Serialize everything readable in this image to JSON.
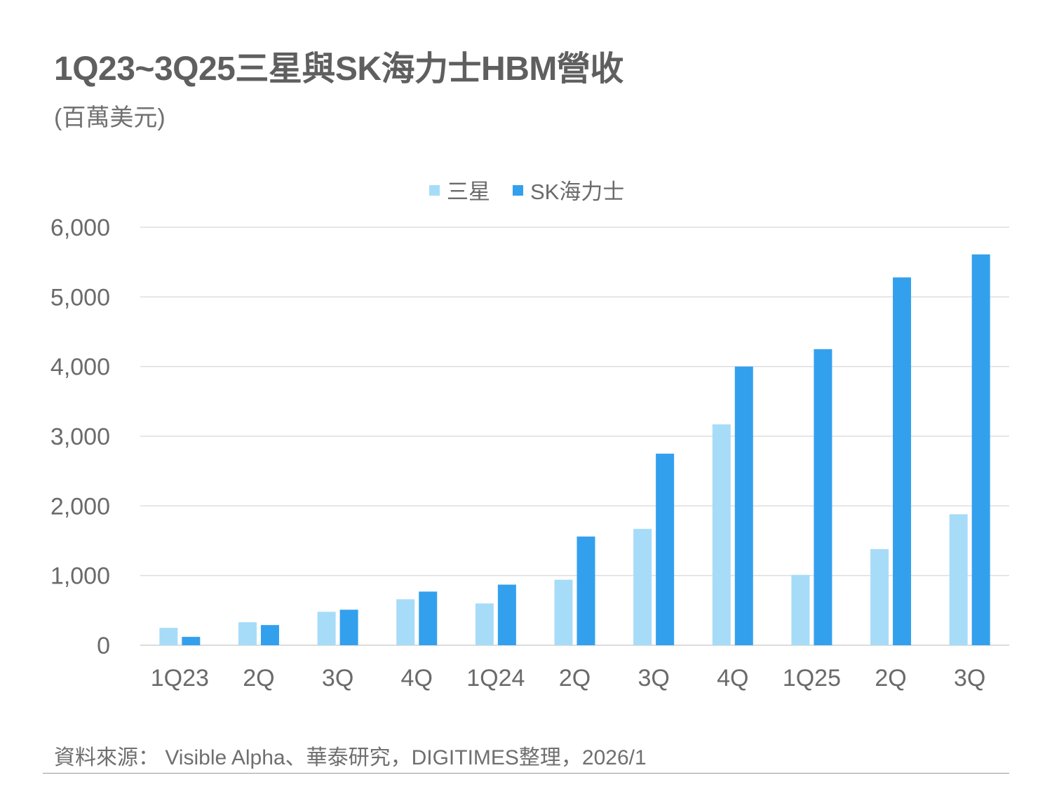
{
  "title": "1Q23~3Q25三星與SK海力士HBM營收",
  "subtitle": "(百萬美元)",
  "footer": "資料來源： Visible Alpha、華泰研究，DIGITIMES整理，2026/1",
  "chart_data": {
    "type": "bar",
    "title": "1Q23~3Q25三星與SK海力士HBM營收",
    "ylabel": "(百萬美元)",
    "categories": [
      "1Q23",
      "2Q",
      "3Q",
      "4Q",
      "1Q24",
      "2Q",
      "3Q",
      "4Q",
      "1Q25",
      "2Q",
      "3Q"
    ],
    "series": [
      {
        "name": "三星",
        "color": "#a7dcf8",
        "values": [
          250,
          330,
          480,
          660,
          600,
          940,
          1670,
          3170,
          1010,
          1380,
          1880
        ]
      },
      {
        "name": "SK海力士",
        "color": "#33a0ee",
        "values": [
          120,
          290,
          510,
          770,
          870,
          1560,
          2750,
          4000,
          4250,
          5280,
          5610
        ]
      }
    ],
    "ylim": [
      0,
      6000
    ],
    "yticks": [
      "0",
      "1,000",
      "2,000",
      "3,000",
      "4,000",
      "5,000",
      "6,000"
    ],
    "grid": true,
    "legend": "top-center"
  }
}
